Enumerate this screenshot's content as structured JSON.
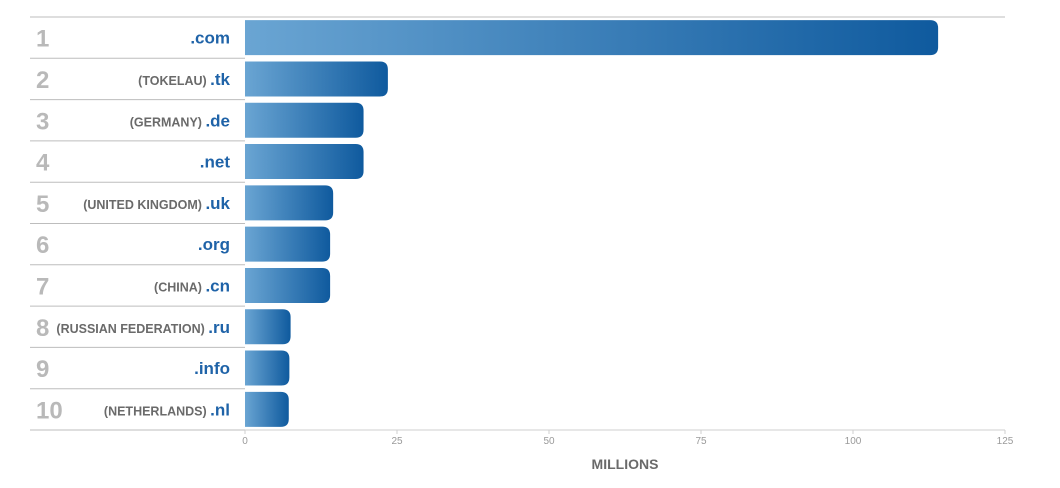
{
  "chart_data": {
    "type": "bar",
    "orientation": "horizontal",
    "categories": [
      {
        "rank": "1",
        "country": "",
        "tld": ".com"
      },
      {
        "rank": "2",
        "country": "(TOKELAU)",
        "tld": ".tk"
      },
      {
        "rank": "3",
        "country": "(GERMANY)",
        "tld": ".de"
      },
      {
        "rank": "4",
        "country": "",
        "tld": ".net"
      },
      {
        "rank": "5",
        "country": "(UNITED KINGDOM)",
        "tld": ".uk"
      },
      {
        "rank": "6",
        "country": "",
        "tld": ".org"
      },
      {
        "rank": "7",
        "country": "(CHINA)",
        "tld": ".cn"
      },
      {
        "rank": "8",
        "country": "(RUSSIAN FEDERATION)",
        "tld": ".ru"
      },
      {
        "rank": "9",
        "country": "",
        "tld": ".info"
      },
      {
        "rank": "10",
        "country": "(NETHERLANDS)",
        "tld": ".nl"
      }
    ],
    "values": [
      114,
      23.5,
      19.5,
      19.5,
      14.5,
      14,
      14,
      7.5,
      7.3,
      7.2
    ],
    "xlabel": "MILLIONS",
    "xlim": [
      0,
      125
    ],
    "xticks": [
      "0",
      "25",
      "50",
      "75",
      "100",
      "125"
    ],
    "grid": false,
    "colors": {
      "bar_light": "#6aa5d3",
      "bar_dark": "#0f5a9e",
      "rank": "#b9b9b9",
      "country": "#6a6a6a",
      "tld": "#1f63a8",
      "row_line": "#bdbdbd"
    }
  }
}
